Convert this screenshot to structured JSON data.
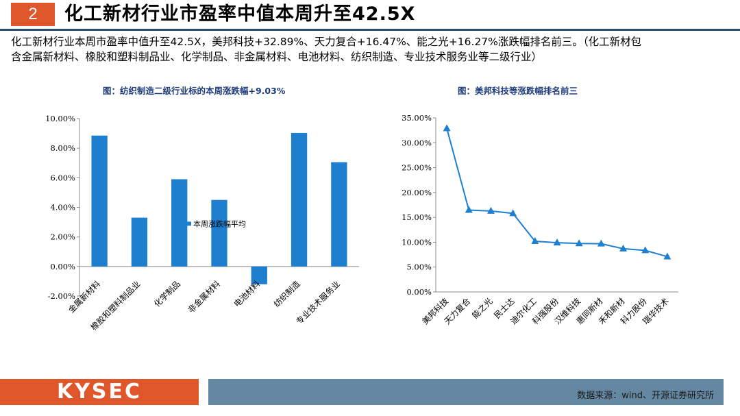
{
  "header": {
    "number": "2",
    "title": "化工新材行业市盈率中值本周升至42.5X"
  },
  "summary": {
    "line1": "化工新材行业本周市盈率中值升至42.5X，美邦科技+32.89%、天力复合+16.47%、能之光+16.27%涨跌幅排名前三。（化工新材包",
    "line2": "含金属新材料、橡胶和塑料制品业、化学制品、非金属材料、电池材料、纺织制造、专业技术服务业等二级行业）"
  },
  "footer": {
    "logo": "KYSEC",
    "source": "数据来源：wind、开源证券研究所"
  },
  "chart_data": [
    {
      "type": "bar",
      "title": "图：纺织制造二级行业标的本周涨跌幅+9.03%",
      "categories": [
        "金属新材料",
        "橡胶和塑料制品业",
        "化学制品",
        "非金属材料",
        "电池材料",
        "纺织制造",
        "专业技术服务业"
      ],
      "series": [
        {
          "name": "本周涨跌幅平均",
          "values": [
            8.85,
            3.3,
            5.9,
            4.5,
            -1.2,
            9.03,
            7.05
          ],
          "color": "#1f7fcf"
        }
      ],
      "yticks": [
        "10.00%",
        "8.00%",
        "6.00%",
        "4.00%",
        "2.00%",
        "0.00%",
        "-2.00%"
      ],
      "ylim": [
        -2,
        10
      ],
      "legend_position": "center"
    },
    {
      "type": "line",
      "title": "图：美邦科技等涨跌幅排名前三",
      "categories": [
        "美邦科技",
        "天力复合",
        "能之光",
        "民士达",
        "迪尔化工",
        "科强股份",
        "汉维科技",
        "惠同新材",
        "禾和新材",
        "科力股份",
        "瑞华技术"
      ],
      "series": [
        {
          "values": [
            32.89,
            16.47,
            16.27,
            15.8,
            10.2,
            9.9,
            9.75,
            9.7,
            8.7,
            8.35,
            7.1
          ],
          "color": "#1f7fcf",
          "marker": "triangle"
        }
      ],
      "yticks": [
        "35.00%",
        "30.00%",
        "25.00%",
        "20.00%",
        "15.00%",
        "10.00%",
        "5.00%",
        "0.00%"
      ],
      "ylim": [
        0,
        35
      ]
    }
  ]
}
